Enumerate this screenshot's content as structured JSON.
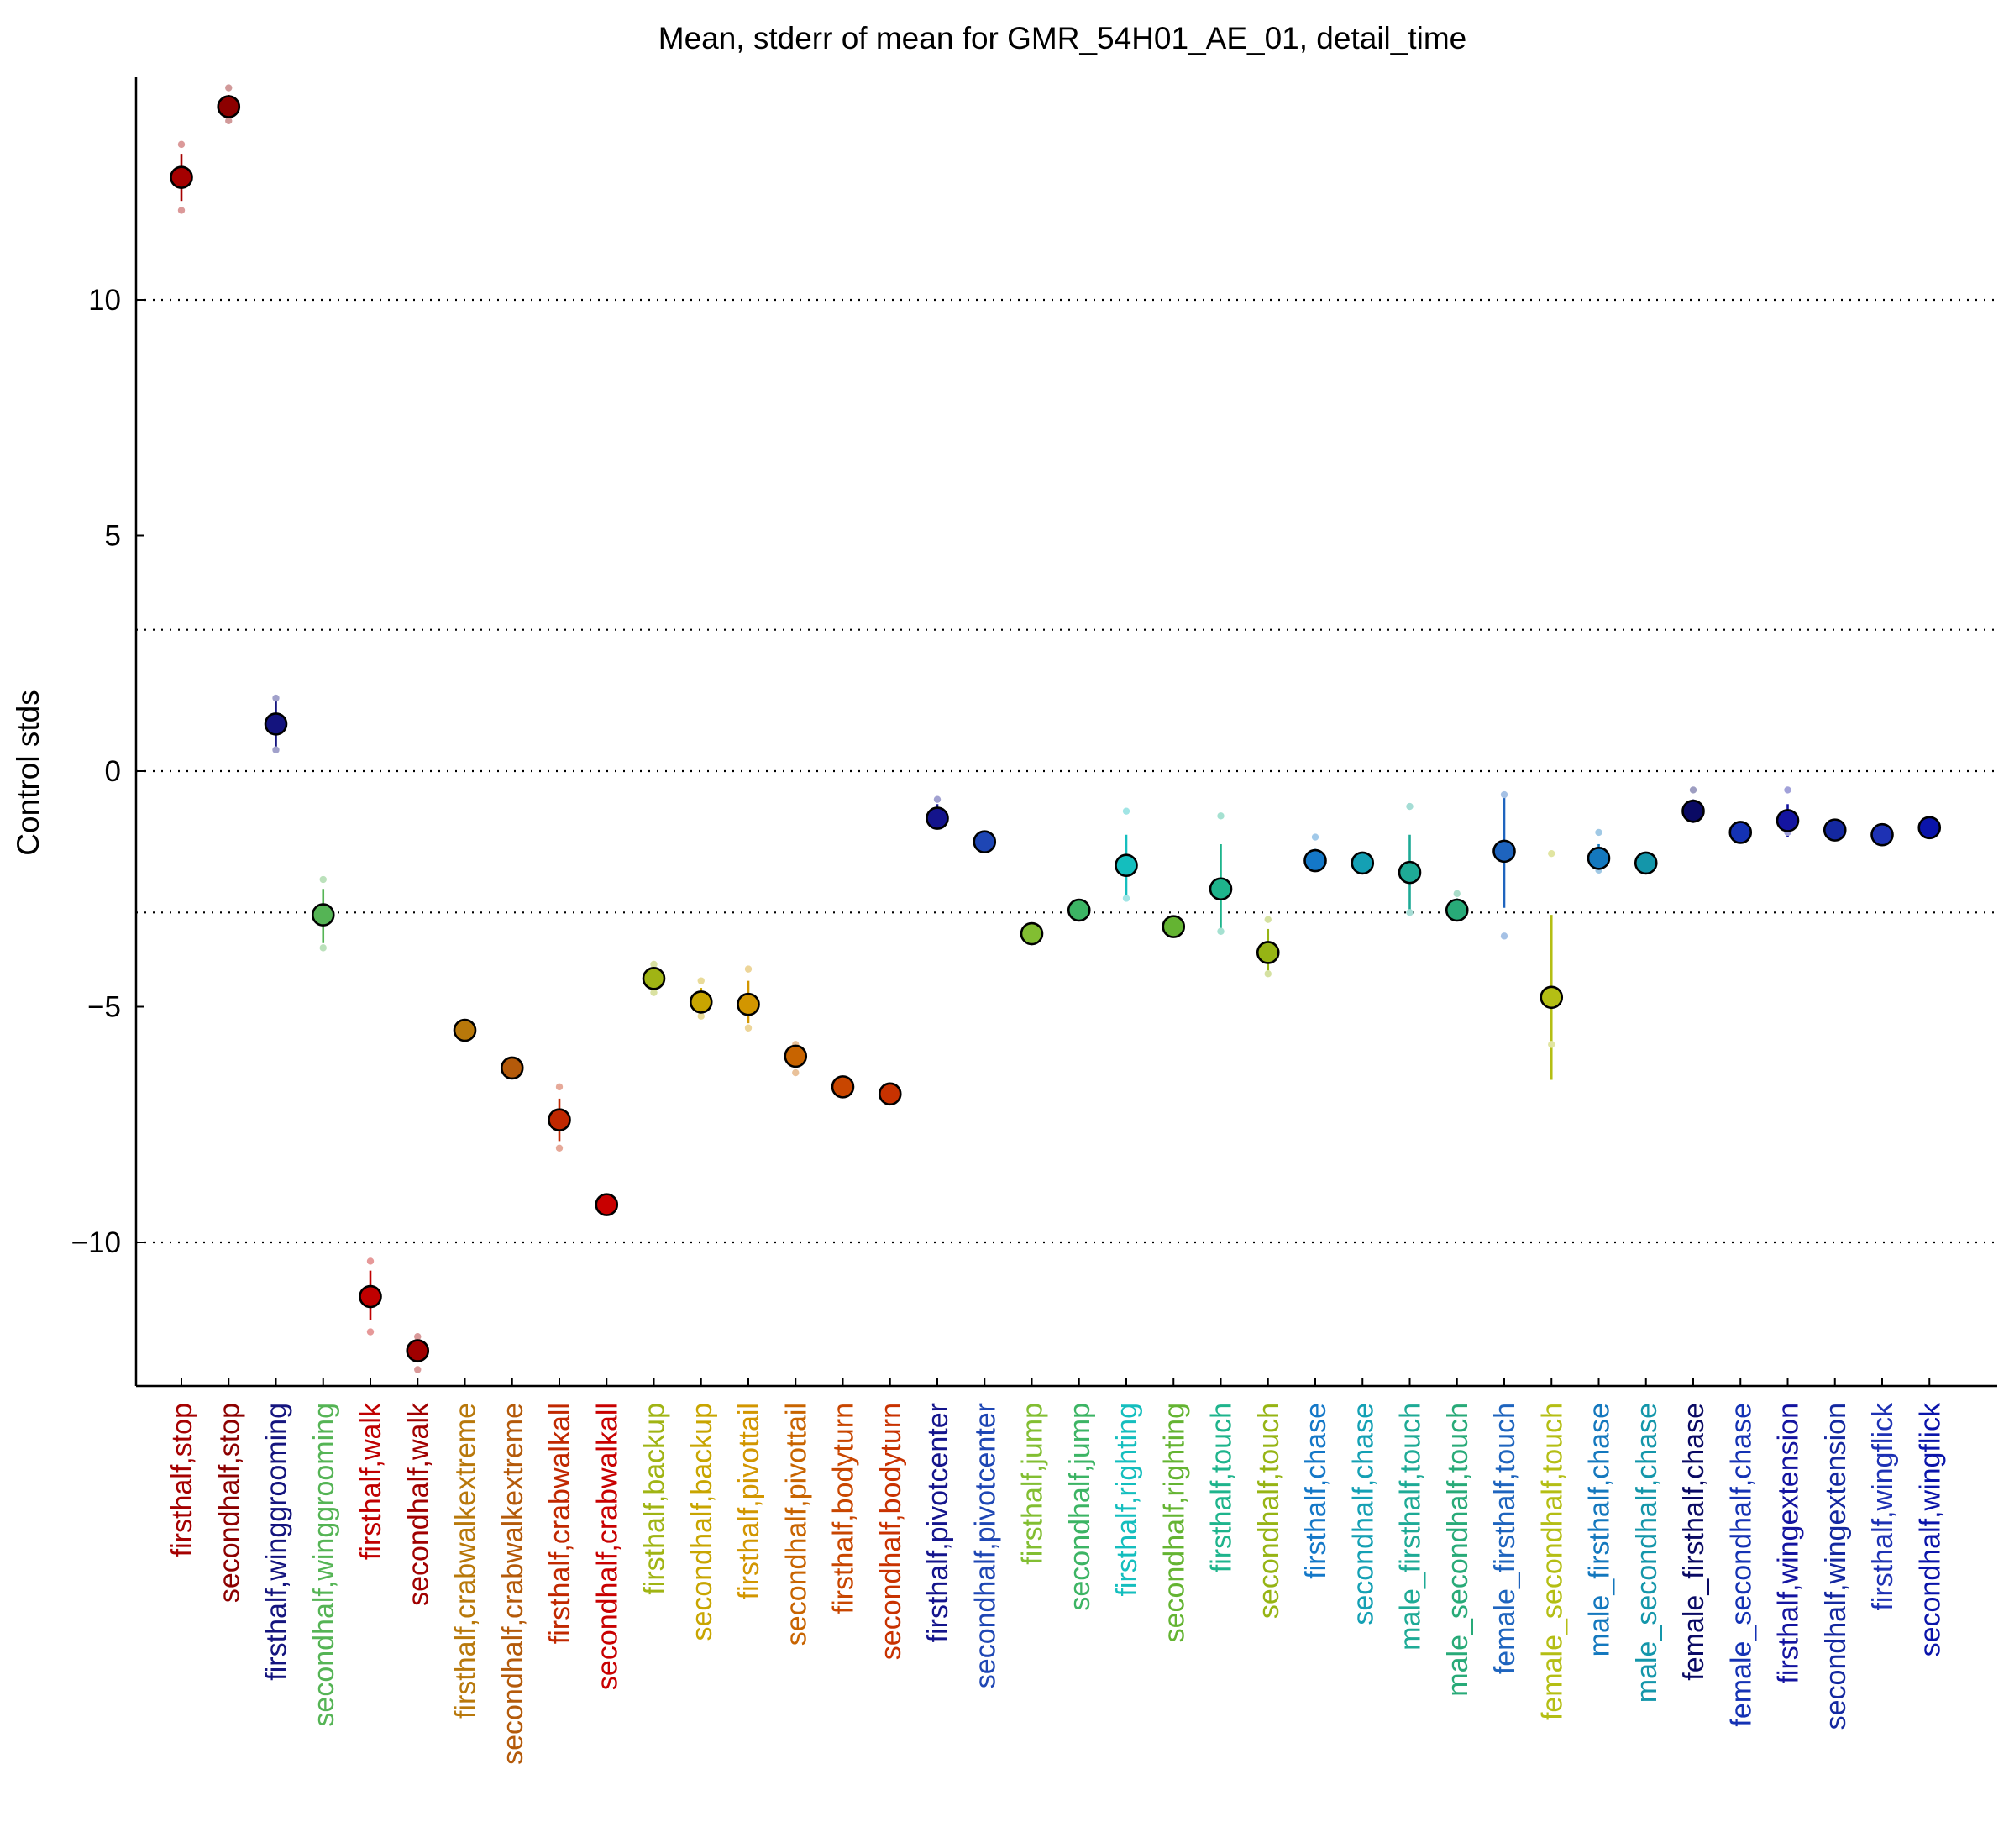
{
  "chart_data": {
    "type": "scatter",
    "title": "Mean, stderr of mean for GMR_54H01_AE_01, detail_time",
    "ylabel": "Control stds",
    "xlabel": "",
    "ylim": [
      -12.9,
      14.8
    ],
    "yticks": [
      -10,
      -5,
      0,
      5,
      10
    ],
    "grid_lines_y": [
      -10,
      -3,
      0,
      3,
      10
    ],
    "legend": "none",
    "points": [
      {
        "label": "firsthalf,stop",
        "mean": 12.6,
        "err_lo": 12.1,
        "err_hi": 13.1,
        "dot_lo": 11.9,
        "dot_hi": 13.3,
        "color": "#a50000"
      },
      {
        "label": "secondhalf,stop",
        "mean": 14.1,
        "err_lo": 13.85,
        "err_hi": 14.35,
        "dot_lo": 13.8,
        "dot_hi": 14.5,
        "color": "#8c0000"
      },
      {
        "label": "firsthalf,winggrooming",
        "mean": 1.0,
        "err_lo": 0.5,
        "err_hi": 1.5,
        "dot_lo": 0.45,
        "dot_hi": 1.55,
        "color": "#14147e"
      },
      {
        "label": "secondhalf,winggrooming",
        "mean": -3.05,
        "err_lo": -3.65,
        "err_hi": -2.5,
        "dot_lo": -3.75,
        "dot_hi": -2.3,
        "color": "#55b455"
      },
      {
        "label": "firsthalf,walk",
        "mean": -11.15,
        "err_lo": -11.65,
        "err_hi": -10.6,
        "dot_lo": -11.9,
        "dot_hi": -10.4,
        "color": "#c00000"
      },
      {
        "label": "secondhalf,walk",
        "mean": -12.3,
        "err_lo": -12.55,
        "err_hi": -12.05,
        "dot_lo": -12.7,
        "dot_hi": -12.0,
        "color": "#a00000"
      },
      {
        "label": "firsthalf,crabwalkextreme",
        "mean": -5.5,
        "err_lo": -5.6,
        "err_hi": -5.4,
        "dot_lo": -5.6,
        "dot_hi": -5.4,
        "color": "#b8780a"
      },
      {
        "label": "secondhalf,crabwalkextreme",
        "mean": -6.3,
        "err_lo": -6.4,
        "err_hi": -6.2,
        "dot_lo": -6.4,
        "dot_hi": -6.2,
        "color": "#b45a0a"
      },
      {
        "label": "firsthalf,crabwalkall",
        "mean": -7.4,
        "err_lo": -7.85,
        "err_hi": -6.95,
        "dot_lo": -8.0,
        "dot_hi": -6.7,
        "color": "#c02800"
      },
      {
        "label": "secondhalf,crabwalkall",
        "mean": -9.2,
        "err_lo": -9.3,
        "err_hi": -9.1,
        "dot_lo": -9.3,
        "dot_hi": -9.1,
        "color": "#c80000"
      },
      {
        "label": "firsthalf,backup",
        "mean": -4.4,
        "err_lo": -4.6,
        "err_hi": -4.2,
        "dot_lo": -4.7,
        "dot_hi": -4.1,
        "color": "#a0b414"
      },
      {
        "label": "secondhalf,backup",
        "mean": -4.9,
        "err_lo": -5.1,
        "err_hi": -4.6,
        "dot_lo": -5.2,
        "dot_hi": -4.45,
        "color": "#c8a500"
      },
      {
        "label": "firsthalf,pivottail",
        "mean": -4.95,
        "err_lo": -5.35,
        "err_hi": -4.45,
        "dot_lo": -5.45,
        "dot_hi": -4.2,
        "color": "#d29600"
      },
      {
        "label": "secondhalf,pivottail",
        "mean": -6.05,
        "err_lo": -6.25,
        "err_hi": -5.85,
        "dot_lo": -6.4,
        "dot_hi": -5.8,
        "color": "#c86400"
      },
      {
        "label": "firsthalf,bodyturn",
        "mean": -6.7,
        "err_lo": -6.8,
        "err_hi": -6.6,
        "dot_lo": -6.8,
        "dot_hi": -6.6,
        "color": "#c84600"
      },
      {
        "label": "secondhalf,bodyturn",
        "mean": -6.85,
        "err_lo": -6.95,
        "err_hi": -6.75,
        "dot_lo": -6.95,
        "dot_hi": -6.75,
        "color": "#c83200"
      },
      {
        "label": "firsthalf,pivotcenter",
        "mean": -1.0,
        "err_lo": -1.2,
        "err_hi": -0.7,
        "dot_lo": -1.15,
        "dot_hi": -0.6,
        "color": "#14148c"
      },
      {
        "label": "secondhalf,pivotcenter",
        "mean": -1.5,
        "err_lo": -1.6,
        "err_hi": -1.4,
        "dot_lo": -1.6,
        "dot_hi": -1.4,
        "color": "#1e46b4"
      },
      {
        "label": "firsthalf,jump",
        "mean": -3.45,
        "err_lo": -3.55,
        "err_hi": -3.35,
        "dot_lo": -3.55,
        "dot_hi": -3.35,
        "color": "#82be32"
      },
      {
        "label": "secondhalf,jump",
        "mean": -2.95,
        "err_lo": -3.05,
        "err_hi": -2.85,
        "dot_lo": -3.05,
        "dot_hi": -2.85,
        "color": "#3cb464"
      },
      {
        "label": "firsthalf,righting",
        "mean": -2.0,
        "err_lo": -2.65,
        "err_hi": -1.35,
        "dot_lo": -2.7,
        "dot_hi": -0.85,
        "color": "#14bebe"
      },
      {
        "label": "secondhalf,righting",
        "mean": -3.3,
        "err_lo": -3.4,
        "err_hi": -3.2,
        "dot_lo": -3.4,
        "dot_hi": -3.2,
        "color": "#64b432"
      },
      {
        "label": "firsthalf,touch",
        "mean": -2.5,
        "err_lo": -3.45,
        "err_hi": -1.55,
        "dot_lo": -3.4,
        "dot_hi": -0.95,
        "color": "#1eb48c"
      },
      {
        "label": "secondhalf,touch",
        "mean": -3.85,
        "err_lo": -4.25,
        "err_hi": -3.35,
        "dot_lo": -4.3,
        "dot_hi": -3.15,
        "color": "#96b414"
      },
      {
        "label": "firsthalf,chase",
        "mean": -1.9,
        "err_lo": -2.05,
        "err_hi": -1.65,
        "dot_lo": -2.05,
        "dot_hi": -1.4,
        "color": "#1478c8"
      },
      {
        "label": "secondhalf,chase",
        "mean": -1.95,
        "err_lo": -2.05,
        "err_hi": -1.85,
        "dot_lo": -2.05,
        "dot_hi": -1.85,
        "color": "#14a0b4"
      },
      {
        "label": "male_firsthalf,touch",
        "mean": -2.15,
        "err_lo": -3.0,
        "err_hi": -1.35,
        "dot_lo": -3.0,
        "dot_hi": -0.75,
        "color": "#1eaa96"
      },
      {
        "label": "male_secondhalf,touch",
        "mean": -2.95,
        "err_lo": -3.05,
        "err_hi": -2.7,
        "dot_lo": -3.05,
        "dot_hi": -2.6,
        "color": "#28aa78"
      },
      {
        "label": "female_firsthalf,touch",
        "mean": -1.7,
        "err_lo": -2.9,
        "err_hi": -0.5,
        "dot_lo": -3.5,
        "dot_hi": -0.5,
        "color": "#1e64be"
      },
      {
        "label": "female_secondhalf,touch",
        "mean": -4.8,
        "err_lo": -6.55,
        "err_hi": -3.05,
        "dot_lo": -5.8,
        "dot_hi": -1.75,
        "color": "#b4be14"
      },
      {
        "label": "male_firsthalf,chase",
        "mean": -1.85,
        "err_lo": -2.1,
        "err_hi": -1.55,
        "dot_lo": -2.1,
        "dot_hi": -1.3,
        "color": "#1478be"
      },
      {
        "label": "male_secondhalf,chase",
        "mean": -1.95,
        "err_lo": -2.05,
        "err_hi": -1.85,
        "dot_lo": -2.05,
        "dot_hi": -1.85,
        "color": "#1496aa"
      },
      {
        "label": "female_firsthalf,chase",
        "mean": -0.85,
        "err_lo": -1.1,
        "err_hi": -0.6,
        "dot_lo": -1.0,
        "dot_hi": -0.4,
        "color": "#0a0a64"
      },
      {
        "label": "female_secondhalf,chase",
        "mean": -1.3,
        "err_lo": -1.4,
        "err_hi": -1.2,
        "dot_lo": -1.4,
        "dot_hi": -1.2,
        "color": "#1432b4"
      },
      {
        "label": "firsthalf,wingextension",
        "mean": -1.05,
        "err_lo": -1.4,
        "err_hi": -0.7,
        "dot_lo": -1.3,
        "dot_hi": -0.4,
        "color": "#1414a0"
      },
      {
        "label": "secondhalf,wingextension",
        "mean": -1.25,
        "err_lo": -1.35,
        "err_hi": -1.15,
        "dot_lo": -1.35,
        "dot_hi": -1.15,
        "color": "#1428a0"
      },
      {
        "label": "firsthalf,wingflick",
        "mean": -1.35,
        "err_lo": -1.45,
        "err_hi": -1.25,
        "dot_lo": -1.45,
        "dot_hi": -1.25,
        "color": "#1e32b4"
      },
      {
        "label": "secondhalf,wingflick",
        "mean": -1.2,
        "err_lo": -1.3,
        "err_hi": -1.1,
        "dot_lo": -1.3,
        "dot_hi": -1.1,
        "color": "#0a14aa"
      }
    ]
  }
}
